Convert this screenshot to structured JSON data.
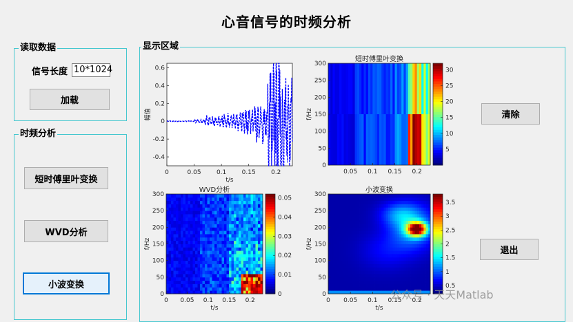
{
  "title": "心音信号的时频分析",
  "read_panel": {
    "title": "读取数据",
    "length_label": "信号长度",
    "length_value": "10*1024",
    "load_button": "加载"
  },
  "tf_panel": {
    "title": "时频分析",
    "stft_button": "短时傅里叶变换",
    "wvd_button": "WVD分析",
    "wavelet_button": "小波变换"
  },
  "display_panel": {
    "title": "显示区域"
  },
  "clear_button": "清除",
  "exit_button": "退出",
  "watermark": "公众号 · 天天Matlab",
  "chart_data": [
    {
      "type": "line",
      "title": "",
      "xlabel": "t/s",
      "ylabel": "幅值",
      "xlim": [
        0,
        0.23
      ],
      "ylim": [
        -0.5,
        0.65
      ],
      "xticks": [
        "0",
        "0.05",
        "0.1",
        "0.15",
        "0.2"
      ],
      "yticks": [
        "-0.4",
        "-0.2",
        "0",
        "0.2",
        "0.4",
        "0.6"
      ],
      "series": [
        {
          "color": "#0000ff",
          "style": "dashed"
        }
      ]
    },
    {
      "type": "heatmap",
      "title": "短时傅里叶变换",
      "xlabel": "",
      "ylabel": "f/Hz",
      "xlim": [
        0,
        0.23
      ],
      "ylim": [
        0,
        300
      ],
      "xticks": [
        "0.05",
        "0.1",
        "0.15",
        "0.2"
      ],
      "yticks": [
        "0",
        "50",
        "100",
        "150",
        "200",
        "250",
        "300"
      ],
      "colorbar_ticks": [
        "5",
        "10",
        "15",
        "20",
        "25",
        "30"
      ],
      "colorbar_range": [
        0,
        32
      ]
    },
    {
      "type": "heatmap",
      "title": "WVD分析",
      "xlabel": "t/s",
      "ylabel": "f/Hz",
      "xlim": [
        0,
        0.23
      ],
      "ylim": [
        0,
        300
      ],
      "xticks": [
        "0",
        "0.05",
        "0.1",
        "0.15",
        "0.2"
      ],
      "yticks": [
        "0",
        "50",
        "100",
        "150",
        "200",
        "250",
        "300"
      ],
      "colorbar_ticks": [
        "0",
        "0.01",
        "0.02",
        "0.03",
        "0.04",
        "0.05"
      ],
      "colorbar_range": [
        0,
        0.052
      ]
    },
    {
      "type": "heatmap",
      "title": "小波变换",
      "xlabel": "t/s",
      "ylabel": "f/Hz",
      "xlim": [
        0,
        0.23
      ],
      "ylim": [
        0,
        300
      ],
      "xticks": [
        "0",
        "0.05",
        "0.1",
        "0.15",
        "0.2"
      ],
      "yticks": [
        "0",
        "50",
        "100",
        "150",
        "200",
        "250",
        "300"
      ],
      "colorbar_ticks": [
        "0.5",
        "1",
        "1.5",
        "2",
        "2.5",
        "3",
        "3.5"
      ],
      "colorbar_range": [
        0.2,
        3.8
      ]
    }
  ]
}
